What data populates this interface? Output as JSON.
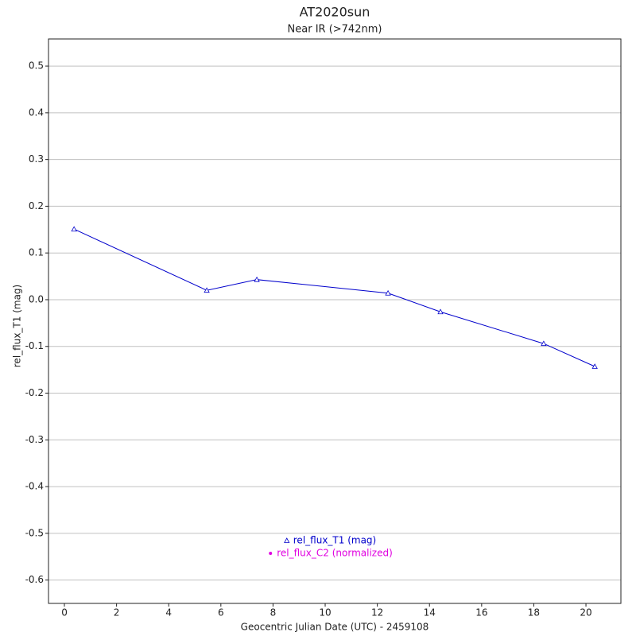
{
  "chart_data": {
    "type": "line",
    "title": "AT2020sun",
    "subtitle": "Near IR (>742nm)",
    "x_label": "Geocentric Julian Date (UTC) - 2459108",
    "y_label": "rel_flux_T1 (mag)",
    "x": [
      0.37,
      5.46,
      7.38,
      12.41,
      14.42,
      18.38,
      20.34
    ],
    "series": [
      {
        "name": "rel_flux_T1 (mag)",
        "color": "#0000cc",
        "marker": "triangle",
        "values": [
          0.151,
          0.02,
          0.043,
          0.014,
          -0.026,
          -0.094,
          -0.143
        ]
      },
      {
        "name": "rel_flux_C2 (normalized)",
        "color": "#e000e0",
        "marker": "dot",
        "values": [
          null,
          null,
          null,
          null,
          null,
          null,
          null
        ]
      }
    ],
    "xlim": [
      -0.61,
      21.34
    ],
    "ylim": [
      -0.65,
      0.558
    ],
    "xticks": [
      0,
      2,
      4,
      6,
      8,
      10,
      12,
      14,
      16,
      18,
      20
    ],
    "yticks": [
      -0.6,
      -0.5,
      -0.4,
      -0.3,
      -0.2,
      -0.1,
      {
        "value": 0,
        "label": "0.0"
      },
      0.1,
      0.2,
      0.3,
      0.4,
      0.5
    ],
    "grid": true,
    "legend": "bottom-center"
  }
}
